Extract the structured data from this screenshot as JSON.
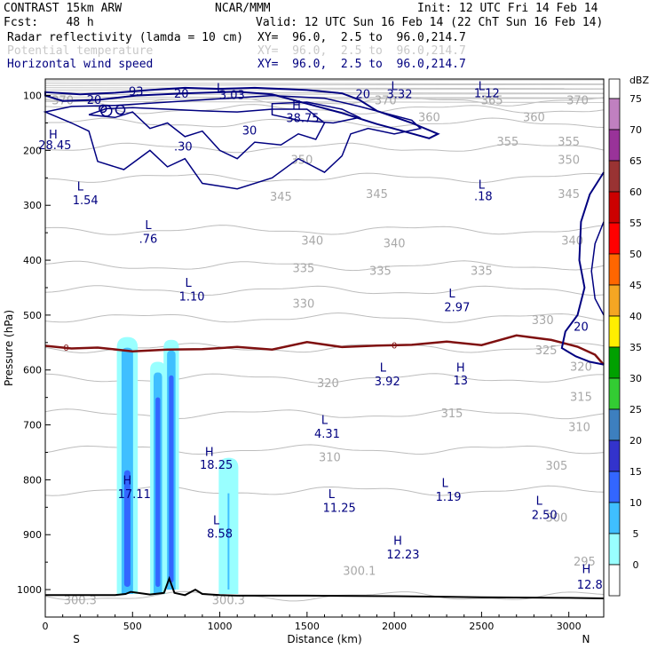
{
  "header": {
    "model": "CONTRAST 15km ARW",
    "org": "NCAR/MMM",
    "init": "Init: 12 UTC Fri 14 Feb 14",
    "fcst": "Fcst:    48 h",
    "valid": "Valid: 12 UTC Sun 16 Feb 14 (22 ChT Sun 16 Feb 14)",
    "lines": [
      {
        "label": "Radar reflectivity (lamda = 10 cm)",
        "xy": "XY=  96.0,  2.5 to  96.0,214.7",
        "color": "#000000"
      },
      {
        "label": "Potential temperature",
        "xy": "XY=  96.0,  2.5 to  96.0,214.7",
        "color": "#c8c8c8"
      },
      {
        "label": "Horizontal wind speed",
        "xy": "XY=  96.0,  2.5 to  96.0,214.7",
        "color": "#000080"
      }
    ]
  },
  "chart_data": {
    "type": "contour",
    "xlabel": "Distance (km)",
    "ylabel": "Pressure (hPa)",
    "xlim": [
      0,
      3200
    ],
    "ylim": [
      1050,
      70
    ],
    "x_ticks": [
      0,
      500,
      1000,
      1500,
      2000,
      2500,
      3000
    ],
    "y_ticks": [
      100,
      200,
      300,
      400,
      500,
      600,
      700,
      800,
      900,
      1000
    ],
    "x_end_labels": {
      "left": "S",
      "right": "N"
    },
    "colorbar": {
      "unit": "dBZ",
      "levels": [
        0,
        5,
        10,
        15,
        20,
        25,
        30,
        35,
        40,
        45,
        50,
        55,
        60,
        65,
        70,
        75
      ],
      "colors": [
        "#ffffff",
        "#99ffff",
        "#3fbfff",
        "#3366ff",
        "#3333cc",
        "#3d7fbf",
        "#33cc33",
        "#00a000",
        "#ffee00",
        "#f5a623",
        "#ff6600",
        "#ff0000",
        "#cc0000",
        "#993333",
        "#993399",
        "#c080c0"
      ]
    },
    "theta_contours": [
      {
        "value": "300",
        "p": 1012
      },
      {
        "value": "305",
        "p": 820
      },
      {
        "value": "310",
        "p": 745
      },
      {
        "value": "315",
        "p": 680
      },
      {
        "value": "320",
        "p": 615
      },
      {
        "value": "325",
        "p": 560
      },
      {
        "value": "330",
        "p": 505
      },
      {
        "value": "335",
        "p": 455
      },
      {
        "value": "340",
        "p": 410
      },
      {
        "value": "345",
        "p": 345
      },
      {
        "value": "350",
        "p": 250
      },
      {
        "value": "355",
        "p": 195
      },
      {
        "value": "360",
        "p": 150
      },
      {
        "value": "365",
        "p": 125
      },
      {
        "value": "370",
        "p": 110
      }
    ],
    "theta_labels": [
      {
        "text": "370",
        "x": 100,
        "p": 110
      },
      {
        "text": "370",
        "x": 1950,
        "p": 110
      },
      {
        "text": "365",
        "x": 2560,
        "p": 110
      },
      {
        "text": "370",
        "x": 3050,
        "p": 110
      },
      {
        "text": "360",
        "x": 2200,
        "p": 140
      },
      {
        "text": "360",
        "x": 2800,
        "p": 140
      },
      {
        "text": "355",
        "x": 2650,
        "p": 185
      },
      {
        "text": "355",
        "x": 3000,
        "p": 185
      },
      {
        "text": "350",
        "x": 1470,
        "p": 218
      },
      {
        "text": "350",
        "x": 3000,
        "p": 218
      },
      {
        "text": "345",
        "x": 1350,
        "p": 285
      },
      {
        "text": "345",
        "x": 1900,
        "p": 280
      },
      {
        "text": "345",
        "x": 3000,
        "p": 280
      },
      {
        "text": "340",
        "x": 1530,
        "p": 365
      },
      {
        "text": "340",
        "x": 2000,
        "p": 370
      },
      {
        "text": "340",
        "x": 3020,
        "p": 365
      },
      {
        "text": "335",
        "x": 1480,
        "p": 415
      },
      {
        "text": "335",
        "x": 1920,
        "p": 420
      },
      {
        "text": "335",
        "x": 2500,
        "p": 420
      },
      {
        "text": "330",
        "x": 1480,
        "p": 480
      },
      {
        "text": "330",
        "x": 2850,
        "p": 510
      },
      {
        "text": "325",
        "x": 2870,
        "p": 565
      },
      {
        "text": "320",
        "x": 1620,
        "p": 625
      },
      {
        "text": "320",
        "x": 3070,
        "p": 595
      },
      {
        "text": "315",
        "x": 2330,
        "p": 680
      },
      {
        "text": "315",
        "x": 3070,
        "p": 650
      },
      {
        "text": "310",
        "x": 1630,
        "p": 760
      },
      {
        "text": "310",
        "x": 3060,
        "p": 705
      },
      {
        "text": "305",
        "x": 2930,
        "p": 775
      },
      {
        "text": "300",
        "x": 2930,
        "p": 870
      },
      {
        "text": "300.1",
        "x": 1800,
        "p": 967
      },
      {
        "text": "300.3",
        "x": 200,
        "p": 1020
      },
      {
        "text": "300.3",
        "x": 1050,
        "p": 1020
      },
      {
        "text": "295",
        "x": 3090,
        "p": 950
      }
    ],
    "freezing_level": {
      "label": "0",
      "x": [
        0,
        150,
        300,
        500,
        700,
        900,
        1100,
        1300,
        1500,
        1700,
        1900,
        2100,
        2300,
        2500,
        2700,
        2900,
        3050,
        3150,
        3200
      ],
      "p": [
        556,
        558,
        562,
        566,
        560,
        565,
        558,
        560,
        552,
        558,
        553,
        557,
        548,
        552,
        540,
        545,
        555,
        575,
        590
      ]
    },
    "terrain": {
      "x": [
        0,
        400,
        460,
        490,
        600,
        680,
        710,
        740,
        800,
        860,
        900,
        1000,
        1100,
        1500,
        2000,
        2500,
        3000,
        3200
      ],
      "p": [
        1010,
        1010,
        1008,
        1004,
        1009,
        1006,
        980,
        1006,
        1010,
        1000,
        1008,
        1010,
        1011,
        1011,
        1012,
        1014,
        1015,
        1016
      ]
    },
    "wind_contours_label": "20",
    "reflectivity_cells": [
      {
        "x": 470,
        "half_width": 30,
        "p_top": 540,
        "p_bottom": 1008,
        "core_dbz": 15
      },
      {
        "x": 645,
        "half_width": 22,
        "p_top": 585,
        "p_bottom": 1008,
        "core_dbz": 15
      },
      {
        "x": 722,
        "half_width": 22,
        "p_top": 545,
        "p_bottom": 1000,
        "core_dbz": 15
      },
      {
        "x": 1050,
        "half_width": 28,
        "p_top": 760,
        "p_bottom": 1008,
        "core_dbz": 5
      }
    ],
    "extrema_labels": [
      {
        "text": "H",
        "x": 45,
        "p": 170
      },
      {
        "text": "28.45",
        "x": 55,
        "p": 190
      },
      {
        "text": "93",
        "x": 520,
        "p": 92
      },
      {
        "text": "20",
        "x": 280,
        "p": 107
      },
      {
        "text": "20",
        "x": 780,
        "p": 96
      },
      {
        "text": "L",
        "x": 1000,
        "p": 85
      },
      {
        "text": "3.03",
        "x": 1070,
        "p": 98
      },
      {
        "text": "H",
        "x": 1440,
        "p": 117
      },
      {
        "text": "38.75",
        "x": 1475,
        "p": 140
      },
      {
        "text": "20",
        "x": 1820,
        "p": 97
      },
      {
        "text": "L",
        "x": 2000,
        "p": 82
      },
      {
        "text": "3.32",
        "x": 2030,
        "p": 97
      },
      {
        "text": "L",
        "x": 2500,
        "p": 82
      },
      {
        "text": "1.12",
        "x": 2530,
        "p": 95
      },
      {
        "text": "30",
        "x": 1170,
        "p": 163
      },
      {
        "text": ".30",
        "x": 790,
        "p": 192
      },
      {
        "text": "L",
        "x": 200,
        "p": 265
      },
      {
        "text": "1.54",
        "x": 230,
        "p": 290
      },
      {
        "text": "L",
        "x": 2500,
        "p": 262
      },
      {
        "text": ".18",
        "x": 2510,
        "p": 283
      },
      {
        "text": "L",
        "x": 590,
        "p": 335
      },
      {
        "text": ".76",
        "x": 590,
        "p": 360
      },
      {
        "text": "L",
        "x": 820,
        "p": 440
      },
      {
        "text": "1.10",
        "x": 840,
        "p": 465
      },
      {
        "text": "L",
        "x": 2330,
        "p": 460
      },
      {
        "text": "2.97",
        "x": 2360,
        "p": 485
      },
      {
        "text": "20",
        "x": 3070,
        "p": 520
      },
      {
        "text": "L",
        "x": 1935,
        "p": 595
      },
      {
        "text": "3.92",
        "x": 1960,
        "p": 620
      },
      {
        "text": "H",
        "x": 2380,
        "p": 595
      },
      {
        "text": "13",
        "x": 2380,
        "p": 618
      },
      {
        "text": "L",
        "x": 1600,
        "p": 690
      },
      {
        "text": "4.31",
        "x": 1615,
        "p": 715
      },
      {
        "text": "H",
        "x": 940,
        "p": 748
      },
      {
        "text": "18.25",
        "x": 980,
        "p": 772
      },
      {
        "text": "H",
        "x": 470,
        "p": 800
      },
      {
        "text": "17.11",
        "x": 510,
        "p": 825
      },
      {
        "text": "L",
        "x": 1640,
        "p": 825
      },
      {
        "text": "11.25",
        "x": 1685,
        "p": 850
      },
      {
        "text": "L",
        "x": 2290,
        "p": 805
      },
      {
        "text": "1.19",
        "x": 2310,
        "p": 830
      },
      {
        "text": "L",
        "x": 2830,
        "p": 837
      },
      {
        "text": "2.50",
        "x": 2860,
        "p": 863
      },
      {
        "text": "L",
        "x": 980,
        "p": 873
      },
      {
        "text": "8.58",
        "x": 1000,
        "p": 897
      },
      {
        "text": "H",
        "x": 2020,
        "p": 910
      },
      {
        "text": "12.23",
        "x": 2050,
        "p": 935
      },
      {
        "text": "H",
        "x": 3100,
        "p": 962
      },
      {
        "text": "12.8",
        "x": 3120,
        "p": 990
      }
    ]
  }
}
